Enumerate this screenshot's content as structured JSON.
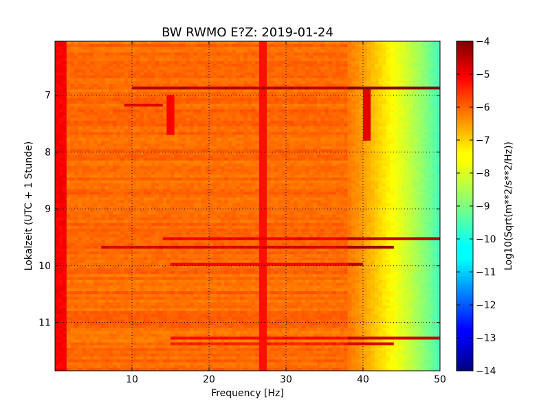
{
  "chart_data": {
    "type": "heatmap",
    "title": "BW RWMO E?Z: 2019-01-24",
    "xlabel": "Frequency [Hz]",
    "ylabel": "Lokalzeit (UTC + 1 Stunde)",
    "colorbar_label": "Log10(Sqrt(m**2/s**2/Hz))",
    "xlim": [
      0,
      50
    ],
    "ylim": [
      11.85,
      6.05
    ],
    "x_ticks": [
      10,
      20,
      30,
      40,
      50
    ],
    "y_ticks": [
      7,
      8,
      9,
      10,
      11
    ],
    "colorbar_range": [
      -14,
      -4
    ],
    "colorbar_ticks": [
      -4,
      -5,
      -6,
      -7,
      -8,
      -9,
      -10,
      -11,
      -12,
      -13,
      -14
    ],
    "colormap": "jet",
    "grid": true,
    "baseline_level": -6.3,
    "high_frequency_rolloff": [
      {
        "hz": 38,
        "level": -6.4
      },
      {
        "hz": 40,
        "level": -6.8
      },
      {
        "hz": 42,
        "level": -7.3
      },
      {
        "hz": 44,
        "level": -7.8
      },
      {
        "hz": 46,
        "level": -8.3
      },
      {
        "hz": 48,
        "level": -8.9
      },
      {
        "hz": 50,
        "level": -9.6
      }
    ],
    "low_frequency_edge": {
      "hz_range": [
        0,
        1.5
      ],
      "level": -5.2
    },
    "horizontal_bands": [
      {
        "time": 6.88,
        "hz_range": [
          10,
          50
        ],
        "level": -4.5
      },
      {
        "time": 7.18,
        "hz_range": [
          9,
          14
        ],
        "level": -5.0
      },
      {
        "time": 9.52,
        "hz_range": [
          14,
          50
        ],
        "level": -5.1
      },
      {
        "time": 9.68,
        "hz_range": [
          6,
          44
        ],
        "level": -4.9
      },
      {
        "time": 9.97,
        "hz_range": [
          15,
          40
        ],
        "level": -5.2
      },
      {
        "time": 11.28,
        "hz_range": [
          15,
          50
        ],
        "level": -5.3
      },
      {
        "time": 11.38,
        "hz_range": [
          15,
          44
        ],
        "level": -5.5
      }
    ],
    "vertical_lines": [
      {
        "hz": 27,
        "level": -5.4
      },
      {
        "hz": 40.5,
        "time_range": [
          6.9,
          7.8
        ],
        "level": -5.0
      },
      {
        "hz": 15,
        "time_range": [
          7.0,
          7.7
        ],
        "level": -5.2
      }
    ]
  }
}
